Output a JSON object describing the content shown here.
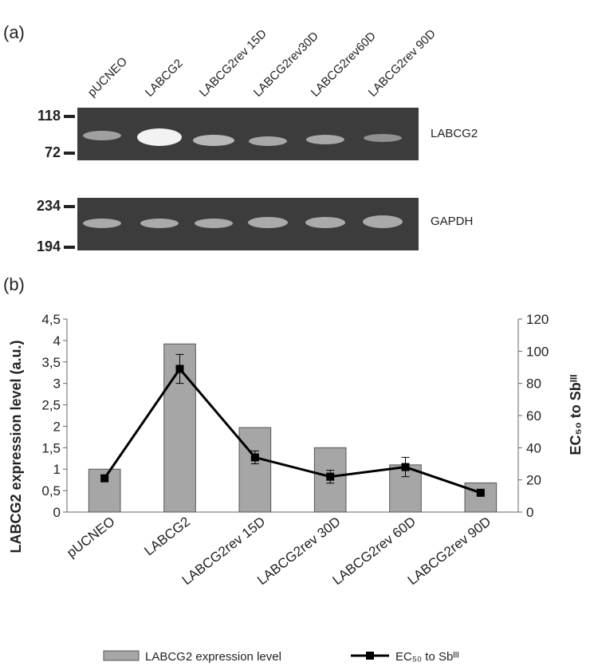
{
  "panel_a": {
    "label": "(a)",
    "lanes": [
      "pUCNEO",
      "LABCG2",
      "LABCG2rev 15D",
      "LABCG2rev30D",
      "LABCG2rev60D",
      "LABCG2rev 90D"
    ],
    "gels": [
      {
        "name": "LABCG2",
        "markers": [
          "118",
          "72"
        ]
      },
      {
        "name": "GAPDH",
        "markers": [
          "234",
          "194"
        ]
      }
    ]
  },
  "chart_data": {
    "type": "bar",
    "panel_label": "(b)",
    "categories": [
      "pUCNEO",
      "LABCG2",
      "LABCG2rev 15D",
      "LABCG2rev 30D",
      "LABCG2rev 60D",
      "LABCG2rev 90D"
    ],
    "ylabel": "LABCG2 expression level  (a.u.)",
    "y2label": "EC₅₀  to Sbᴵᴵᴵ",
    "ylim": [
      0,
      4.5
    ],
    "yticks": [
      0,
      {
        "value": 0.5,
        "label": "0,5"
      },
      1,
      {
        "value": 1.5,
        "label": "1,5"
      },
      2,
      {
        "value": 2.5,
        "label": "2,5"
      },
      3,
      {
        "value": 3.5,
        "label": "3,5"
      },
      4,
      {
        "value": 4.5,
        "label": "4,5"
      }
    ],
    "y2lim": [
      0,
      120
    ],
    "y2ticks": [
      0,
      20,
      40,
      60,
      80,
      100,
      120
    ],
    "series": [
      {
        "name": "LABCG2 expression level",
        "type": "bar",
        "color": "#a6a6a6",
        "values": [
          1.0,
          3.92,
          1.97,
          1.5,
          1.1,
          0.68
        ]
      },
      {
        "name": "EC₅₀ to Sbᴵᴵᴵ",
        "type": "line",
        "axis": "y2",
        "color": "#000000",
        "values": [
          21,
          89,
          34,
          22,
          28,
          12
        ],
        "errors": [
          1,
          9,
          4,
          4,
          6,
          1
        ]
      }
    ]
  }
}
